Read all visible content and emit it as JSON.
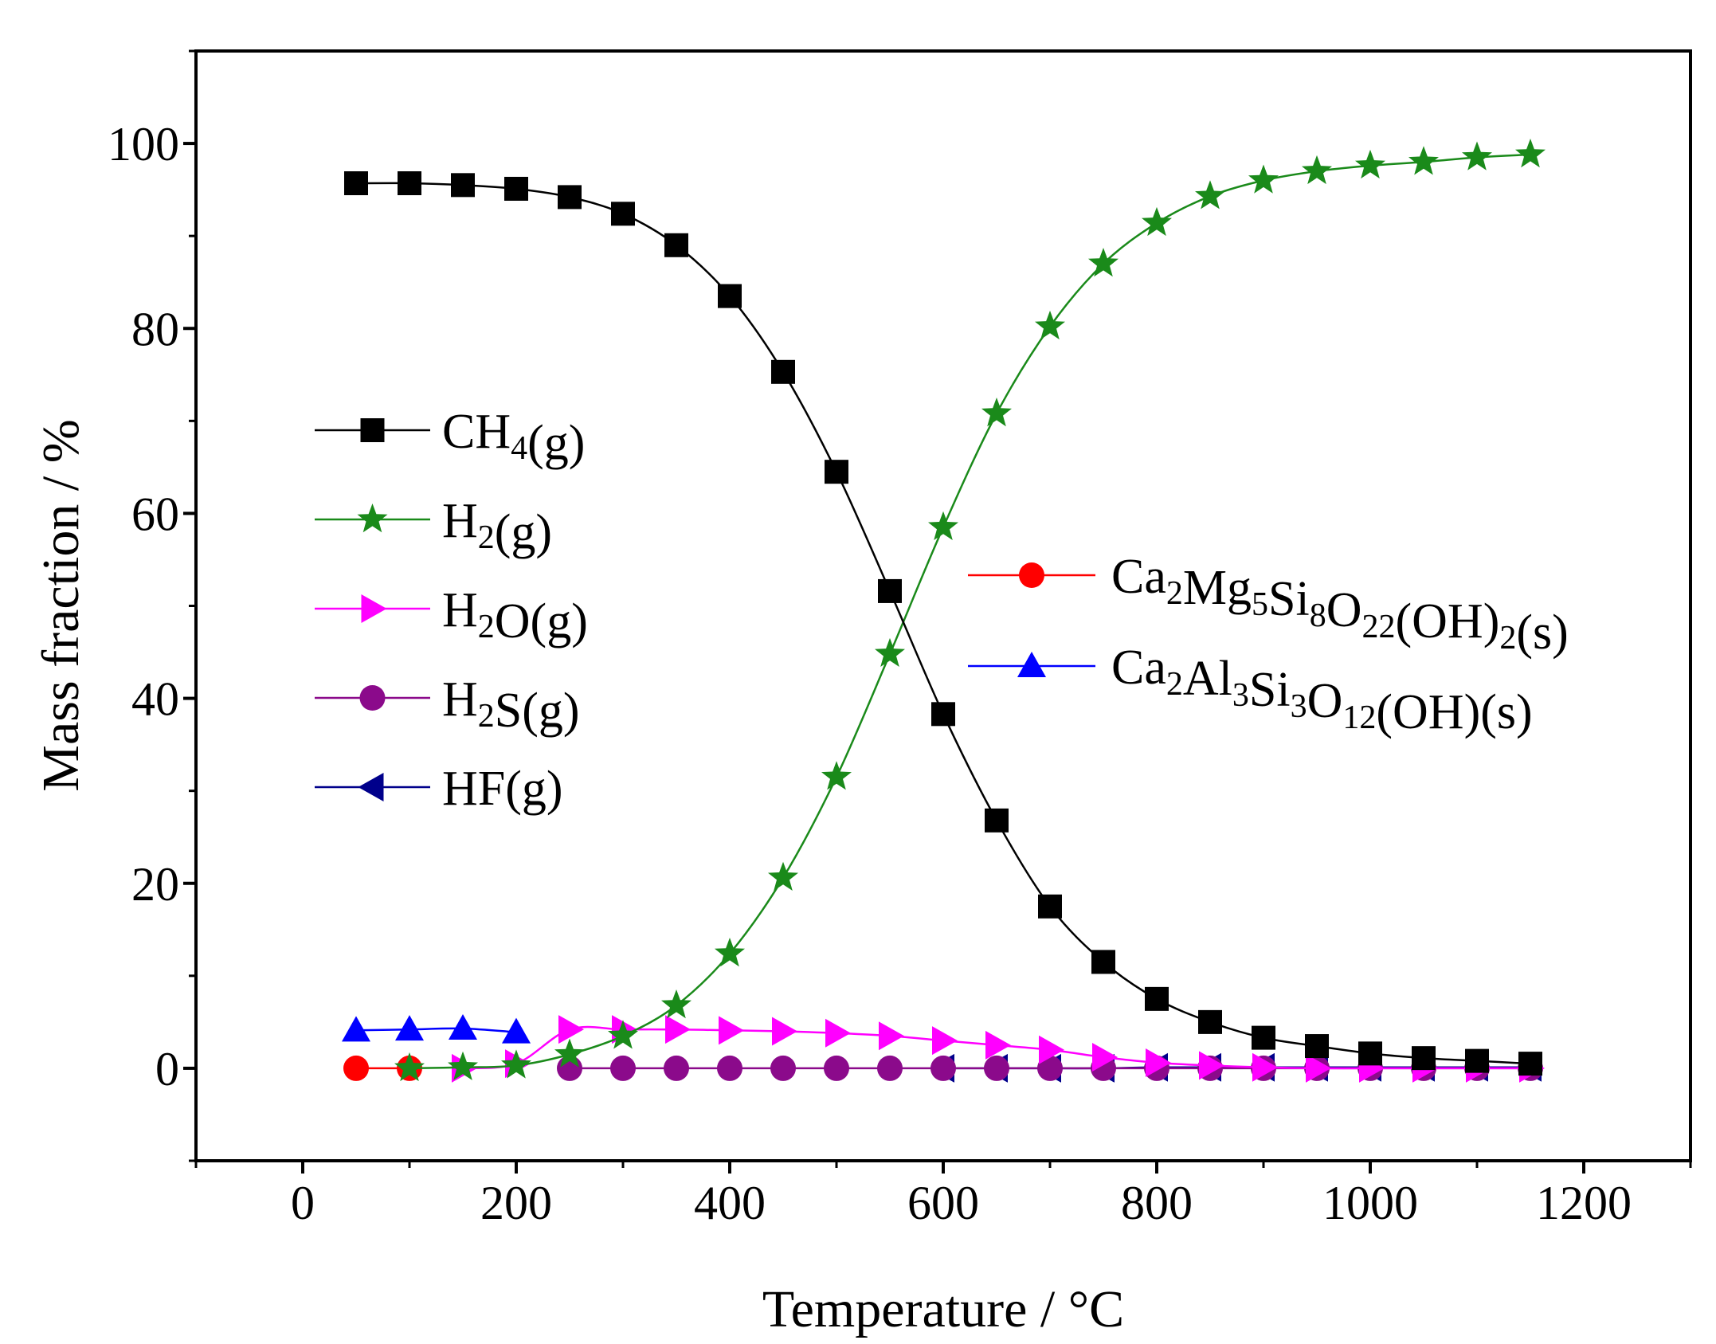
{
  "chart_data": {
    "type": "line",
    "xlabel": "Temperature / °C",
    "ylabel": "Mass fraction / %",
    "xlim": [
      -100,
      1300
    ],
    "ylim": [
      -10,
      110
    ],
    "xticks": [
      0,
      200,
      400,
      600,
      800,
      1000,
      1200
    ],
    "yticks": [
      0,
      20,
      40,
      60,
      80,
      100
    ],
    "x_tick_labels": [
      "0",
      "200",
      "400",
      "600",
      "800",
      "1000",
      "1200"
    ],
    "y_tick_labels": [
      "0",
      "20",
      "40",
      "60",
      "80",
      "100"
    ],
    "legend_position": "left and center-right inside plot",
    "series": [
      {
        "key": "ch4",
        "name": "CH4(g)",
        "legend": [
          {
            "t": "CH"
          },
          {
            "t": "4",
            "sub": true
          },
          {
            "t": "(g)"
          }
        ],
        "color": "#000000",
        "marker": "square",
        "x": [
          50,
          100,
          150,
          200,
          250,
          300,
          350,
          400,
          450,
          500,
          550,
          600,
          650,
          700,
          750,
          800,
          850,
          900,
          950,
          1000,
          1050,
          1100,
          1150
        ],
        "y": [
          95.7,
          95.7,
          95.5,
          95.1,
          94.2,
          92.4,
          89.0,
          83.5,
          75.3,
          64.5,
          51.6,
          38.3,
          26.8,
          17.5,
          11.5,
          7.5,
          5.0,
          3.3,
          2.4,
          1.6,
          1.1,
          0.8,
          0.5
        ]
      },
      {
        "key": "h2",
        "name": "H2(g)",
        "legend": [
          {
            "t": "H"
          },
          {
            "t": "2",
            "sub": true
          },
          {
            "t": "(g)"
          }
        ],
        "color": "#1a8a1a",
        "marker": "star",
        "x": [
          100,
          150,
          200,
          250,
          300,
          350,
          400,
          450,
          500,
          550,
          600,
          650,
          700,
          750,
          800,
          850,
          900,
          950,
          1000,
          1050,
          1100,
          1150
        ],
        "y": [
          0.0,
          0.1,
          0.3,
          1.5,
          3.5,
          6.8,
          12.4,
          20.6,
          31.5,
          44.8,
          58.5,
          70.8,
          80.2,
          87.0,
          91.4,
          94.3,
          96.0,
          97.0,
          97.6,
          98.0,
          98.5,
          98.8
        ]
      },
      {
        "key": "h2o",
        "name": "H2O(g)",
        "legend": [
          {
            "t": "H"
          },
          {
            "t": "2",
            "sub": true
          },
          {
            "t": "O(g)"
          }
        ],
        "color": "#ff00ff",
        "marker": "triangle-right",
        "x": [
          150,
          200,
          250,
          300,
          350,
          400,
          450,
          500,
          550,
          600,
          650,
          700,
          750,
          800,
          850,
          900,
          950,
          1000,
          1050,
          1100,
          1150
        ],
        "y": [
          0.0,
          0.5,
          4.2,
          4.2,
          4.2,
          4.1,
          4.0,
          3.8,
          3.5,
          3.0,
          2.5,
          2.0,
          1.2,
          0.6,
          0.3,
          0.1,
          0.0,
          0.0,
          0.0,
          0.0,
          0.0
        ]
      },
      {
        "key": "h2s",
        "name": "H2S(g)",
        "legend": [
          {
            "t": "H"
          },
          {
            "t": "2",
            "sub": true
          },
          {
            "t": "S(g)"
          }
        ],
        "color": "#8b0a8b",
        "marker": "circle",
        "x": [
          250,
          300,
          350,
          400,
          450,
          500,
          550,
          600,
          650,
          700,
          750,
          800,
          850,
          900,
          950,
          1000,
          1050,
          1100,
          1150
        ],
        "y": [
          0.0,
          0.0,
          0.0,
          0.0,
          0.0,
          0.0,
          0.0,
          0.0,
          0.0,
          0.0,
          0.0,
          0.0,
          0.0,
          0.0,
          0.0,
          0.0,
          0.0,
          0.0,
          0.0
        ]
      },
      {
        "key": "hf",
        "name": "HF(g)",
        "legend": [
          {
            "t": "HF(g)"
          }
        ],
        "color": "#00008b",
        "marker": "triangle-left",
        "x": [
          600,
          650,
          700,
          750,
          800,
          850,
          900,
          950,
          1000,
          1050,
          1100,
          1150
        ],
        "y": [
          0.0,
          0.0,
          0.0,
          0.0,
          0.1,
          0.1,
          0.1,
          0.1,
          0.1,
          0.1,
          0.1,
          0.1
        ]
      },
      {
        "key": "tremolite",
        "name": "Ca2Mg5Si8O22(OH)2(s)",
        "legend": [
          {
            "t": "Ca"
          },
          {
            "t": "2",
            "sub": true
          },
          {
            "t": "Mg"
          },
          {
            "t": "5",
            "sub": true
          },
          {
            "t": "Si"
          },
          {
            "t": "8",
            "sub": true
          },
          {
            "t": "O"
          },
          {
            "t": "22",
            "sub": true
          },
          {
            "t": "(OH)"
          },
          {
            "t": "2",
            "sub": true
          },
          {
            "t": "(s)"
          }
        ],
        "color": "#ff0000",
        "marker": "circle",
        "x": [
          50,
          100
        ],
        "y": [
          0.0,
          0.0
        ]
      },
      {
        "key": "epidote",
        "name": "Ca2Al3Si3O12(OH)(s)",
        "legend": [
          {
            "t": "Ca"
          },
          {
            "t": "2",
            "sub": true
          },
          {
            "t": "Al"
          },
          {
            "t": "3",
            "sub": true
          },
          {
            "t": "Si"
          },
          {
            "t": "3",
            "sub": true
          },
          {
            "t": "O"
          },
          {
            "t": "12",
            "sub": true
          },
          {
            "t": "(OH)(s)"
          }
        ],
        "color": "#0000ff",
        "marker": "triangle-up",
        "x": [
          50,
          100,
          150,
          200
        ],
        "y": [
          4.1,
          4.2,
          4.3,
          3.9
        ]
      }
    ]
  }
}
